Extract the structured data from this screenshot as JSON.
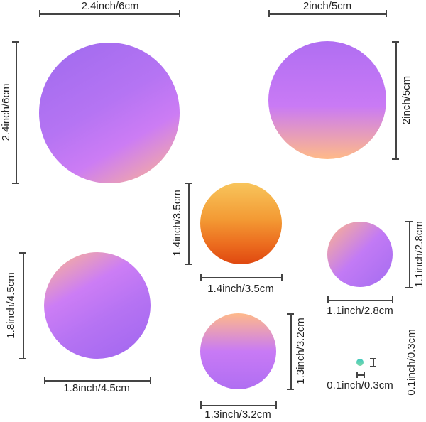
{
  "labels": {
    "c1_width": "2.4inch/6cm",
    "c1_height": "2.4inch/6cm",
    "c2_width": "2inch/5cm",
    "c2_height": "2inch/5cm",
    "c3_width": "1.4inch/3.5cm",
    "c3_height": "1.4inch/3.5cm",
    "c4_width": "1.1inch/2.8cm",
    "c4_height": "1.1inch/2.8cm",
    "c5_width": "1.8inch/4.5cm",
    "c5_height": "1.8inch/4.5cm",
    "c6_width": "1.3inch/3.2cm",
    "c6_height": "1.3inch/3.2cm",
    "c7_width": "0.1inch/0.3cm",
    "c7_height": "0.1inch/0.3cm"
  },
  "colors": {
    "purple": "#a46cf0",
    "violet": "#c77af6",
    "peach": "#ffb48a",
    "orange_top": "#f8c35a",
    "orange_mid": "#f08a2a",
    "orange_bottom": "#e04a10",
    "teal": "#4fd0b8",
    "line": "#444444"
  }
}
